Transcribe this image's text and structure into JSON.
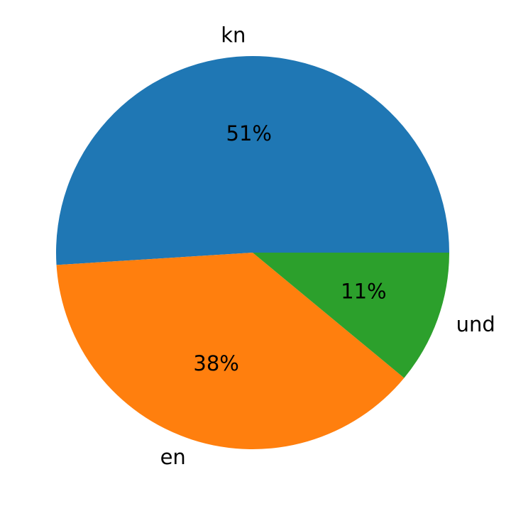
{
  "chart_data": {
    "type": "pie",
    "categories": [
      "kn",
      "en",
      "und"
    ],
    "values": [
      51,
      38,
      11
    ],
    "value_labels": [
      "51%",
      "38%",
      "11%"
    ],
    "colors": [
      "#1f77b4",
      "#ff7f0e",
      "#2ca02c"
    ]
  }
}
